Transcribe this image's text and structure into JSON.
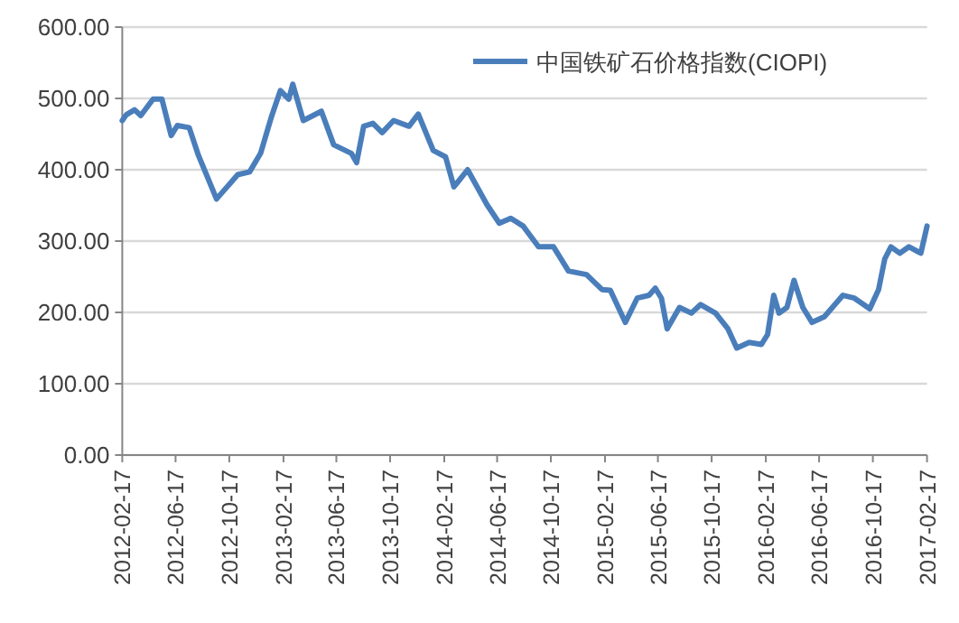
{
  "chart_data": {
    "type": "line",
    "x": [
      "2012-02-17",
      "2012-02-26",
      "2012-03-16",
      "2012-03-30",
      "2012-04-27",
      "2012-05-17",
      "2012-06-07",
      "2012-06-21",
      "2012-07-18",
      "2012-08-08",
      "2012-09-18",
      "2012-11-05",
      "2012-12-02",
      "2012-12-27",
      "2013-01-20",
      "2013-02-10",
      "2013-03-01",
      "2013-03-10",
      "2013-04-03",
      "2013-05-14",
      "2013-06-11",
      "2013-07-21",
      "2013-08-02",
      "2013-08-18",
      "2013-09-08",
      "2013-09-29",
      "2013-10-25",
      "2013-11-29",
      "2013-12-20",
      "2014-01-23",
      "2014-02-20",
      "2014-03-11",
      "2014-04-11",
      "2014-05-25",
      "2014-06-22",
      "2014-07-18",
      "2014-08-15",
      "2014-09-19",
      "2014-10-23",
      "2014-11-26",
      "2015-01-06",
      "2015-02-10",
      "2015-03-01",
      "2015-04-04",
      "2015-05-01",
      "2015-05-28",
      "2015-06-11",
      "2015-06-25",
      "2015-07-08",
      "2015-08-05",
      "2015-09-01",
      "2015-09-22",
      "2015-10-26",
      "2015-11-23",
      "2015-12-13",
      "2016-01-10",
      "2016-02-07",
      "2016-02-21",
      "2016-03-06",
      "2016-03-18",
      "2016-04-05",
      "2016-04-21",
      "2016-05-11",
      "2016-06-01",
      "2016-06-29",
      "2016-08-10",
      "2016-09-05",
      "2016-10-10",
      "2016-10-30",
      "2016-11-13",
      "2016-11-27",
      "2016-12-17",
      "2017-01-07",
      "2017-02-03",
      "2017-02-17"
    ],
    "series": [
      {
        "name": "中国铁矿石价格指数(CIOPI)",
        "color": "#4a7ebb",
        "values": [
          469,
          477,
          484,
          476,
          499,
          499,
          448,
          462,
          459,
          420,
          359,
          393,
          397,
          423,
          473,
          511,
          499,
          520,
          469,
          482,
          435,
          423,
          410,
          461,
          465,
          452,
          469,
          461,
          478,
          427,
          418,
          376,
          400,
          351,
          325,
          332,
          321,
          292,
          292,
          258,
          253,
          232,
          231,
          186,
          220,
          224,
          234,
          220,
          177,
          207,
          199,
          211,
          199,
          177,
          150,
          158,
          155,
          169,
          224,
          199,
          207,
          245,
          207,
          186,
          194,
          224,
          220,
          205,
          232,
          275,
          292,
          283,
          292,
          283,
          321
        ]
      }
    ],
    "ylim": [
      0,
      600
    ],
    "yticks": [
      {
        "value": 0,
        "label": "0.00"
      },
      {
        "value": 100,
        "label": "100.00"
      },
      {
        "value": 200,
        "label": "200.00"
      },
      {
        "value": 300,
        "label": "300.00"
      },
      {
        "value": 400,
        "label": "400.00"
      },
      {
        "value": 500,
        "label": "500.00"
      },
      {
        "value": 600,
        "label": "600.00"
      }
    ],
    "xlim": [
      "2012-02-17",
      "2017-02-17"
    ],
    "xticks": [
      "2012-02-17",
      "2012-06-17",
      "2012-10-17",
      "2013-02-17",
      "2013-06-17",
      "2013-10-17",
      "2014-02-17",
      "2014-06-17",
      "2014-10-17",
      "2015-02-17",
      "2015-06-17",
      "2015-10-17",
      "2016-02-17",
      "2016-06-17",
      "2016-10-17",
      "2017-02-17"
    ],
    "grid": "y",
    "legend": "top right",
    "marker": "none",
    "line_style": "solid"
  }
}
